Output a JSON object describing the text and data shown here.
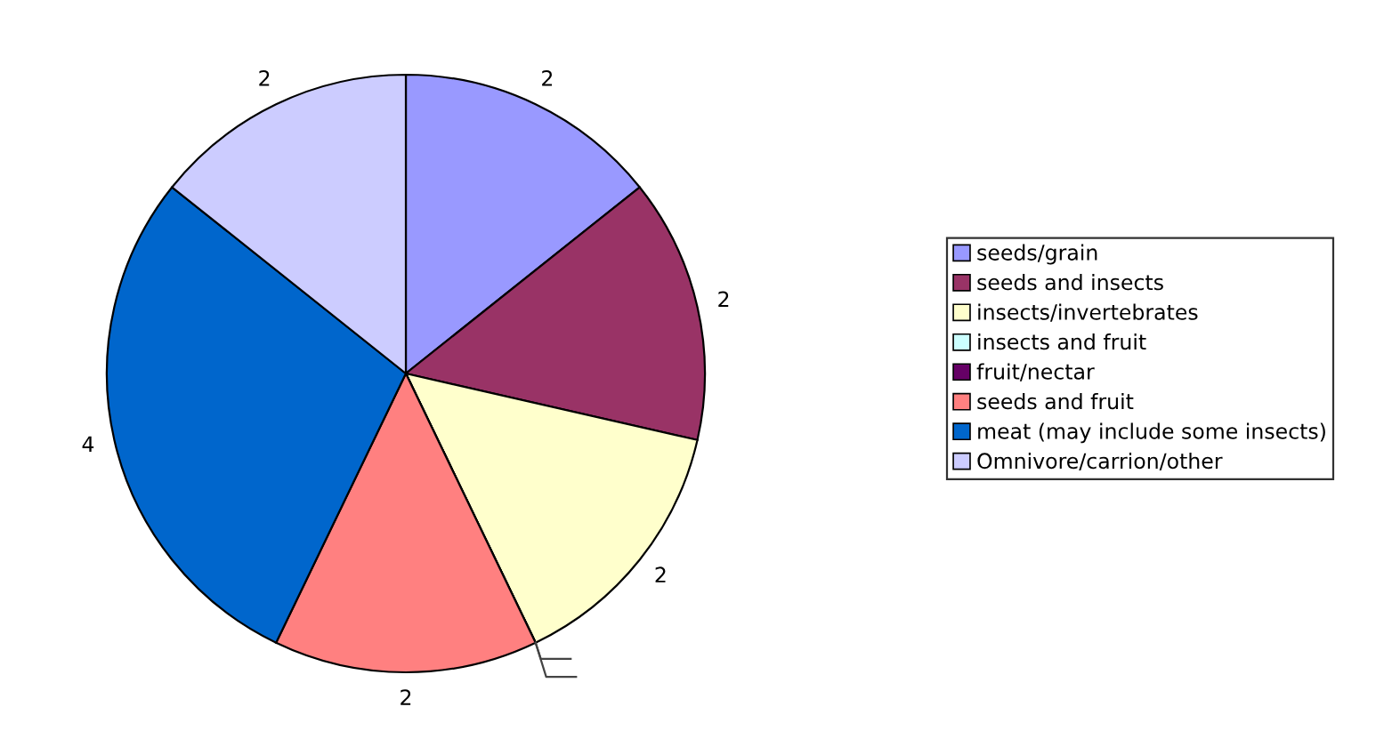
{
  "chart_data": {
    "type": "pie",
    "categories": [
      "seeds/grain",
      "seeds and insects",
      "insects/invertebrates",
      "insects and fruit",
      "fruit/nectar",
      "seeds and fruit",
      "meat (may include some insects)",
      "Omnivore/carrion/other"
    ],
    "values": [
      2,
      2,
      2,
      0,
      0,
      2,
      4,
      2
    ],
    "value_labels": [
      "2",
      "2",
      "2",
      null,
      null,
      "2",
      "4",
      "2"
    ],
    "colors": [
      "#9999ff",
      "#993366",
      "#ffffcc",
      "#ccffff",
      "#660066",
      "#ff8080",
      "#0066cc",
      "#ccccff"
    ],
    "legend": "right"
  }
}
